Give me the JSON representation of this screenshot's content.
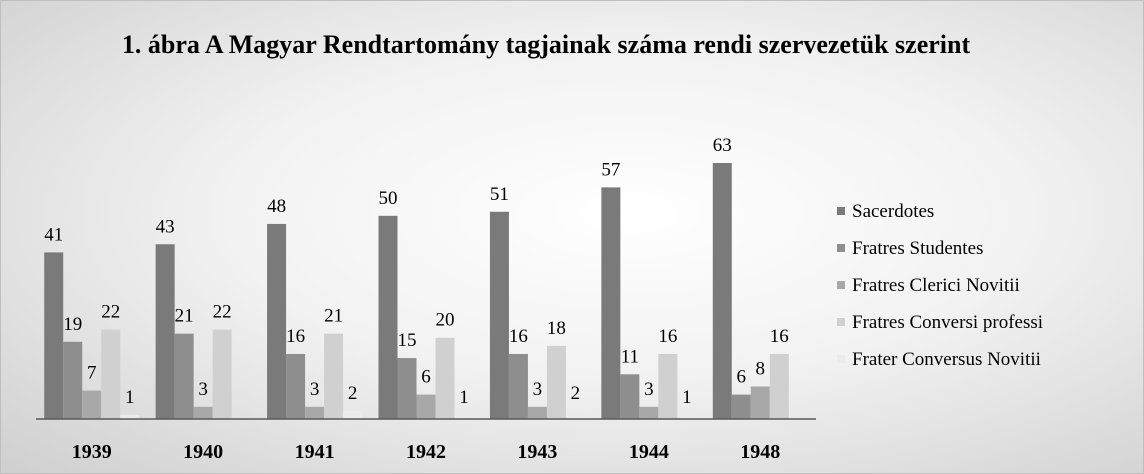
{
  "chart_data": {
    "type": "bar",
    "title": "1. ábra A Magyar Rendtartomány tagjainak száma rendi szervezetük szerint",
    "categories": [
      "1939",
      "1940",
      "1941",
      "1942",
      "1943",
      "1944",
      "1948"
    ],
    "series": [
      {
        "name": "Sacerdotes",
        "color": "#7a7a7a",
        "values": [
          41,
          43,
          48,
          50,
          51,
          57,
          63
        ]
      },
      {
        "name": "Fratres Studentes",
        "color": "#8e8e8e",
        "values": [
          19,
          21,
          16,
          15,
          16,
          11,
          6
        ]
      },
      {
        "name": "Fratres Clerici Novitii",
        "color": "#a8a8a8",
        "values": [
          7,
          3,
          3,
          6,
          3,
          3,
          8
        ]
      },
      {
        "name": "Fratres Conversi professi",
        "color": "#d0d0d0",
        "values": [
          22,
          22,
          21,
          20,
          18,
          16,
          16
        ]
      },
      {
        "name": "Frater Conversus Novitii",
        "color": "#ebebeb",
        "values": [
          1,
          null,
          2,
          1,
          2,
          1,
          null
        ]
      }
    ],
    "legend": "right"
  }
}
